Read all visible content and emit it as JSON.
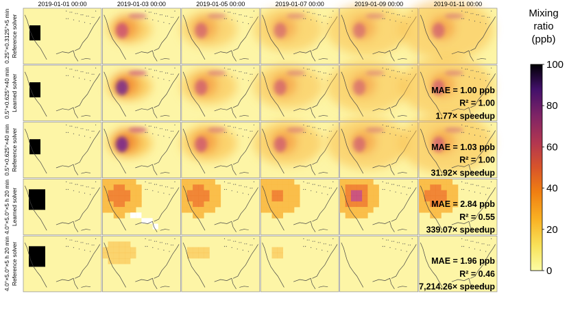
{
  "chart_data": {
    "type": "heatmap",
    "title": "",
    "colorbar": {
      "title_lines": [
        "Mixing",
        "ratio",
        "(ppb)"
      ],
      "range": [
        0,
        100
      ],
      "ticks": [
        0,
        20,
        40,
        60,
        80,
        100
      ],
      "colormap": "inferno_r"
    },
    "columns": [
      "2019-01-01 00:00",
      "2019-01-03 00:00",
      "2019-01-05 00:00",
      "2019-01-07 00:00",
      "2019-01-09 00:00",
      "2019-01-11 00:00"
    ],
    "rows": [
      {
        "label_line1": "0.25°×0.3125°×5 min",
        "label_line2": "Reference solver",
        "coarse": false,
        "metrics": null,
        "plume_intensity": [
          1.0,
          0.7,
          0.55,
          0.5,
          0.5,
          0.55
        ]
      },
      {
        "label_line1": "0.5°×0.625°×40 min",
        "label_line2": "Learned solver",
        "coarse": false,
        "metrics": {
          "mae": "MAE = 1.00 ppb",
          "r2": "R² = 1.00",
          "speedup": "1.77× speedup"
        },
        "plume_intensity": [
          1.0,
          0.85,
          0.6,
          0.55,
          0.5,
          0.55
        ]
      },
      {
        "label_line1": "0.5°×0.625°×40 min",
        "label_line2": "Reference solver",
        "coarse": false,
        "metrics": {
          "mae": "MAE = 1.03 ppb",
          "r2": "R² = 1.00",
          "speedup": "31.92× speedup"
        },
        "plume_intensity": [
          1.0,
          0.9,
          0.65,
          0.6,
          0.55,
          0.55
        ]
      },
      {
        "label_line1": "4.0°×5.0°×5 h 20 min",
        "label_line2": "Learned solver",
        "coarse": true,
        "metrics": {
          "mae": "MAE = 2.84 ppb",
          "r2": "R² = 0.55",
          "speedup": "339.07× speedup"
        },
        "plume_intensity": [
          1.0,
          0.55,
          0.55,
          0.45,
          0.65,
          0.55
        ]
      },
      {
        "label_line1": "4.0°×5.0°×5 h 20 min",
        "label_line2": "Reference solver",
        "coarse": true,
        "metrics": {
          "mae": "MAE = 1.96 ppb",
          "r2": "R² = 0.46",
          "speedup": "7,214.26× speedup"
        },
        "plume_intensity": [
          1.0,
          0.12,
          0.08,
          0.06,
          0.05,
          0.05
        ]
      }
    ]
  }
}
